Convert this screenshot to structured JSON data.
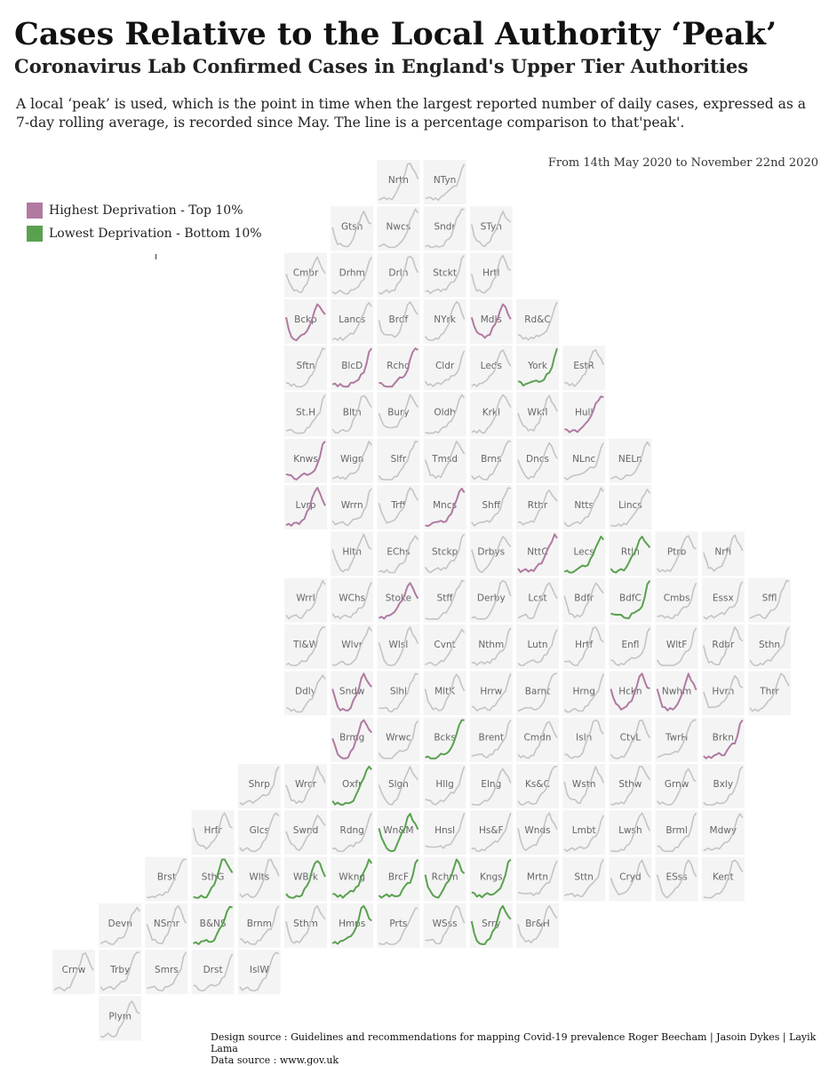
{
  "header": {
    "title": "Cases Relative to the Local Authority ‘Peak’",
    "subtitle": "Coronavirus Lab Confirmed Cases in England's Upper Tier Authorities",
    "description": "A local ‘peak’ is used, which is the point in time when the largest reported number of daily cases, expressed as a 7-day rolling average, is recorded since May. The line is a percentage comparison to that'peak'.",
    "date_range": "From 14th May 2020 to November 22nd 2020"
  },
  "legend": {
    "items": [
      {
        "label": "Highest Deprivation - Top 10%",
        "color": "#b07aa1"
      },
      {
        "label": "Lowest Deprivation - Bottom 10%",
        "color": "#59a14f"
      }
    ],
    "stray_mark": "ı"
  },
  "footer": {
    "design_source": "Design source : Guidelines and recommendations for mapping Covid-19 prevalence Roger Beecham | Jasoin Dykes | Layik Lama",
    "data_source": "Data source : www.gov.uk"
  },
  "chart_data": {
    "type": "small-multiples line (tile grid map)",
    "x_range": [
      "14th May 2020",
      "November 22nd 2020"
    ],
    "y_unit": "% of local peak",
    "ylim": [
      0,
      100
    ],
    "colors": {
      "high": "#b07aa1",
      "low": "#59a14f",
      "other": "#c4c4c4",
      "tile": "#f4f4f4"
    },
    "tiles": [
      {
        "label": "Nrth",
        "row": 0,
        "col": 8,
        "group": "other"
      },
      {
        "label": "NTyn",
        "row": 0,
        "col": 9,
        "group": "other"
      },
      {
        "label": "Gtsh",
        "row": 1,
        "col": 7,
        "group": "other"
      },
      {
        "label": "Nwcs",
        "row": 1,
        "col": 8,
        "group": "other"
      },
      {
        "label": "Sndr",
        "row": 1,
        "col": 9,
        "group": "other"
      },
      {
        "label": "STyn",
        "row": 1,
        "col": 10,
        "group": "other"
      },
      {
        "label": "Cmbr",
        "row": 2,
        "col": 6,
        "group": "other"
      },
      {
        "label": "Drhm",
        "row": 2,
        "col": 7,
        "group": "other"
      },
      {
        "label": "Drln",
        "row": 2,
        "col": 8,
        "group": "other"
      },
      {
        "label": "Stckt",
        "row": 2,
        "col": 9,
        "group": "other"
      },
      {
        "label": "Hrtl",
        "row": 2,
        "col": 10,
        "group": "other"
      },
      {
        "label": "Bckp",
        "row": 3,
        "col": 6,
        "group": "high"
      },
      {
        "label": "Lancs",
        "row": 3,
        "col": 7,
        "group": "other"
      },
      {
        "label": "Brdf",
        "row": 3,
        "col": 8,
        "group": "other"
      },
      {
        "label": "NYrk",
        "row": 3,
        "col": 9,
        "group": "other"
      },
      {
        "label": "Mdls",
        "row": 3,
        "col": 10,
        "group": "high"
      },
      {
        "label": "Rd&C",
        "row": 3,
        "col": 11,
        "group": "other"
      },
      {
        "label": "Sftn",
        "row": 4,
        "col": 6,
        "group": "other"
      },
      {
        "label": "BlcD",
        "row": 4,
        "col": 7,
        "group": "high"
      },
      {
        "label": "Rchd",
        "row": 4,
        "col": 8,
        "group": "high"
      },
      {
        "label": "Cldr",
        "row": 4,
        "col": 9,
        "group": "other"
      },
      {
        "label": "Leds",
        "row": 4,
        "col": 10,
        "group": "other"
      },
      {
        "label": "York",
        "row": 4,
        "col": 11,
        "group": "low"
      },
      {
        "label": "EstR",
        "row": 4,
        "col": 12,
        "group": "other"
      },
      {
        "label": "St.H",
        "row": 5,
        "col": 6,
        "group": "other"
      },
      {
        "label": "Bltn",
        "row": 5,
        "col": 7,
        "group": "other"
      },
      {
        "label": "Bury",
        "row": 5,
        "col": 8,
        "group": "other"
      },
      {
        "label": "Oldh",
        "row": 5,
        "col": 9,
        "group": "other"
      },
      {
        "label": "Krkl",
        "row": 5,
        "col": 10,
        "group": "other"
      },
      {
        "label": "Wkfl",
        "row": 5,
        "col": 11,
        "group": "other"
      },
      {
        "label": "Hull",
        "row": 5,
        "col": 12,
        "group": "high"
      },
      {
        "label": "Knws",
        "row": 6,
        "col": 6,
        "group": "high"
      },
      {
        "label": "Wign",
        "row": 6,
        "col": 7,
        "group": "other"
      },
      {
        "label": "Slfr",
        "row": 6,
        "col": 8,
        "group": "other"
      },
      {
        "label": "Tmsd",
        "row": 6,
        "col": 9,
        "group": "other"
      },
      {
        "label": "Brns",
        "row": 6,
        "col": 10,
        "group": "other"
      },
      {
        "label": "Dncs",
        "row": 6,
        "col": 11,
        "group": "other"
      },
      {
        "label": "NLnc",
        "row": 6,
        "col": 12,
        "group": "other"
      },
      {
        "label": "NELn",
        "row": 6,
        "col": 13,
        "group": "other"
      },
      {
        "label": "Lvrp",
        "row": 7,
        "col": 6,
        "group": "high"
      },
      {
        "label": "Wrrn",
        "row": 7,
        "col": 7,
        "group": "other"
      },
      {
        "label": "Trff",
        "row": 7,
        "col": 8,
        "group": "other"
      },
      {
        "label": "Mncs",
        "row": 7,
        "col": 9,
        "group": "high"
      },
      {
        "label": "Shff",
        "row": 7,
        "col": 10,
        "group": "other"
      },
      {
        "label": "Rthr",
        "row": 7,
        "col": 11,
        "group": "other"
      },
      {
        "label": "Ntts",
        "row": 7,
        "col": 12,
        "group": "other"
      },
      {
        "label": "Lincs",
        "row": 7,
        "col": 13,
        "group": "other"
      },
      {
        "label": "Hltn",
        "row": 8,
        "col": 7,
        "group": "other"
      },
      {
        "label": "EChs",
        "row": 8,
        "col": 8,
        "group": "other"
      },
      {
        "label": "Stckp",
        "row": 8,
        "col": 9,
        "group": "other"
      },
      {
        "label": "Drbys",
        "row": 8,
        "col": 10,
        "group": "other"
      },
      {
        "label": "NttC",
        "row": 8,
        "col": 11,
        "group": "high"
      },
      {
        "label": "Lecs",
        "row": 8,
        "col": 12,
        "group": "low"
      },
      {
        "label": "Rtln",
        "row": 8,
        "col": 13,
        "group": "low"
      },
      {
        "label": "Ptrb",
        "row": 8,
        "col": 14,
        "group": "other"
      },
      {
        "label": "Nrfl",
        "row": 8,
        "col": 15,
        "group": "other"
      },
      {
        "label": "Wrrl",
        "row": 9,
        "col": 6,
        "group": "other"
      },
      {
        "label": "WChs",
        "row": 9,
        "col": 7,
        "group": "other"
      },
      {
        "label": "Stoke",
        "row": 9,
        "col": 8,
        "group": "high"
      },
      {
        "label": "Stff",
        "row": 9,
        "col": 9,
        "group": "other"
      },
      {
        "label": "Derby",
        "row": 9,
        "col": 10,
        "group": "other"
      },
      {
        "label": "Lcst",
        "row": 9,
        "col": 11,
        "group": "other"
      },
      {
        "label": "Bdfr",
        "row": 9,
        "col": 12,
        "group": "other"
      },
      {
        "label": "BdfC",
        "row": 9,
        "col": 13,
        "group": "low"
      },
      {
        "label": "Cmbs",
        "row": 9,
        "col": 14,
        "group": "other"
      },
      {
        "label": "Essx",
        "row": 9,
        "col": 15,
        "group": "other"
      },
      {
        "label": "Sffl",
        "row": 9,
        "col": 16,
        "group": "other"
      },
      {
        "label": "Tl&W",
        "row": 10,
        "col": 6,
        "group": "other"
      },
      {
        "label": "Wlvr",
        "row": 10,
        "col": 7,
        "group": "other"
      },
      {
        "label": "Wlsl",
        "row": 10,
        "col": 8,
        "group": "other"
      },
      {
        "label": "Cvnt",
        "row": 10,
        "col": 9,
        "group": "other"
      },
      {
        "label": "Nthm",
        "row": 10,
        "col": 10,
        "group": "other"
      },
      {
        "label": "Lutn",
        "row": 10,
        "col": 11,
        "group": "other"
      },
      {
        "label": "Hrtf",
        "row": 10,
        "col": 12,
        "group": "other"
      },
      {
        "label": "Enfl",
        "row": 10,
        "col": 13,
        "group": "other"
      },
      {
        "label": "WltF",
        "row": 10,
        "col": 14,
        "group": "other"
      },
      {
        "label": "Rdbr",
        "row": 10,
        "col": 15,
        "group": "other"
      },
      {
        "label": "Sthn",
        "row": 10,
        "col": 16,
        "group": "other"
      },
      {
        "label": "Ddly",
        "row": 11,
        "col": 6,
        "group": "other"
      },
      {
        "label": "Sndw",
        "row": 11,
        "col": 7,
        "group": "high"
      },
      {
        "label": "Slhl",
        "row": 11,
        "col": 8,
        "group": "other"
      },
      {
        "label": "MltK",
        "row": 11,
        "col": 9,
        "group": "other"
      },
      {
        "label": "Hrrw",
        "row": 11,
        "col": 10,
        "group": "other"
      },
      {
        "label": "Barnt",
        "row": 11,
        "col": 11,
        "group": "other"
      },
      {
        "label": "Hrng",
        "row": 11,
        "col": 12,
        "group": "other"
      },
      {
        "label": "Hckn",
        "row": 11,
        "col": 13,
        "group": "high"
      },
      {
        "label": "Nwhm",
        "row": 11,
        "col": 14,
        "group": "high"
      },
      {
        "label": "Hvrn",
        "row": 11,
        "col": 15,
        "group": "other"
      },
      {
        "label": "Thrr",
        "row": 11,
        "col": 16,
        "group": "other"
      },
      {
        "label": "Brmg",
        "row": 12,
        "col": 7,
        "group": "high"
      },
      {
        "label": "Wrwc",
        "row": 12,
        "col": 8,
        "group": "other"
      },
      {
        "label": "Bcks",
        "row": 12,
        "col": 9,
        "group": "low"
      },
      {
        "label": "Brent",
        "row": 12,
        "col": 10,
        "group": "other"
      },
      {
        "label": "Cmdn",
        "row": 12,
        "col": 11,
        "group": "other"
      },
      {
        "label": "Isln",
        "row": 12,
        "col": 12,
        "group": "other"
      },
      {
        "label": "CtyL",
        "row": 12,
        "col": 13,
        "group": "other"
      },
      {
        "label": "TwrH",
        "row": 12,
        "col": 14,
        "group": "other"
      },
      {
        "label": "Brkn",
        "row": 12,
        "col": 15,
        "group": "high"
      },
      {
        "label": "Shrp",
        "row": 13,
        "col": 5,
        "group": "other"
      },
      {
        "label": "Wrcr",
        "row": 13,
        "col": 6,
        "group": "other"
      },
      {
        "label": "Oxfr",
        "row": 13,
        "col": 7,
        "group": "low"
      },
      {
        "label": "Slgh",
        "row": 13,
        "col": 8,
        "group": "other"
      },
      {
        "label": "Hllg",
        "row": 13,
        "col": 9,
        "group": "other"
      },
      {
        "label": "Elng",
        "row": 13,
        "col": 10,
        "group": "other"
      },
      {
        "label": "Ks&C",
        "row": 13,
        "col": 11,
        "group": "other"
      },
      {
        "label": "Wstn",
        "row": 13,
        "col": 12,
        "group": "other"
      },
      {
        "label": "Sthw",
        "row": 13,
        "col": 13,
        "group": "other"
      },
      {
        "label": "Grnw",
        "row": 13,
        "col": 14,
        "group": "other"
      },
      {
        "label": "Bxly",
        "row": 13,
        "col": 15,
        "group": "other"
      },
      {
        "label": "Hrfr",
        "row": 14,
        "col": 4,
        "group": "other"
      },
      {
        "label": "Glcs",
        "row": 14,
        "col": 5,
        "group": "other"
      },
      {
        "label": "Swnd",
        "row": 14,
        "col": 6,
        "group": "other"
      },
      {
        "label": "Rdng",
        "row": 14,
        "col": 7,
        "group": "other"
      },
      {
        "label": "Wn&M",
        "row": 14,
        "col": 8,
        "group": "low"
      },
      {
        "label": "Hnsl",
        "row": 14,
        "col": 9,
        "group": "other"
      },
      {
        "label": "Hs&F",
        "row": 14,
        "col": 10,
        "group": "other"
      },
      {
        "label": "Wnds",
        "row": 14,
        "col": 11,
        "group": "other"
      },
      {
        "label": "Lmbt",
        "row": 14,
        "col": 12,
        "group": "other"
      },
      {
        "label": "Lwsh",
        "row": 14,
        "col": 13,
        "group": "other"
      },
      {
        "label": "Brml",
        "row": 14,
        "col": 14,
        "group": "other"
      },
      {
        "label": "Mdwy",
        "row": 14,
        "col": 15,
        "group": "other"
      },
      {
        "label": "Brst",
        "row": 15,
        "col": 3,
        "group": "other"
      },
      {
        "label": "SthG",
        "row": 15,
        "col": 4,
        "group": "low"
      },
      {
        "label": "Wlts",
        "row": 15,
        "col": 5,
        "group": "other"
      },
      {
        "label": "WBrk",
        "row": 15,
        "col": 6,
        "group": "low"
      },
      {
        "label": "Wkng",
        "row": 15,
        "col": 7,
        "group": "low"
      },
      {
        "label": "BrcF",
        "row": 15,
        "col": 8,
        "group": "low"
      },
      {
        "label": "Rchm",
        "row": 15,
        "col": 9,
        "group": "low"
      },
      {
        "label": "Kngs",
        "row": 15,
        "col": 10,
        "group": "low"
      },
      {
        "label": "Mrtn",
        "row": 15,
        "col": 11,
        "group": "other"
      },
      {
        "label": "Sttn",
        "row": 15,
        "col": 12,
        "group": "other"
      },
      {
        "label": "Cryd",
        "row": 15,
        "col": 13,
        "group": "other"
      },
      {
        "label": "ESss",
        "row": 15,
        "col": 14,
        "group": "other"
      },
      {
        "label": "Kent",
        "row": 15,
        "col": 15,
        "group": "other"
      },
      {
        "label": "Devn",
        "row": 16,
        "col": 2,
        "group": "other"
      },
      {
        "label": "NSmr",
        "row": 16,
        "col": 3,
        "group": "other"
      },
      {
        "label": "B&NS",
        "row": 16,
        "col": 4,
        "group": "low"
      },
      {
        "label": "Brnm",
        "row": 16,
        "col": 5,
        "group": "other"
      },
      {
        "label": "Sthm",
        "row": 16,
        "col": 6,
        "group": "other"
      },
      {
        "label": "Hmps",
        "row": 16,
        "col": 7,
        "group": "low"
      },
      {
        "label": "Prts",
        "row": 16,
        "col": 8,
        "group": "other"
      },
      {
        "label": "WSss",
        "row": 16,
        "col": 9,
        "group": "other"
      },
      {
        "label": "Srry",
        "row": 16,
        "col": 10,
        "group": "low"
      },
      {
        "label": "Br&H",
        "row": 16,
        "col": 11,
        "group": "other"
      },
      {
        "label": "Crnw",
        "row": 17,
        "col": 1,
        "group": "other"
      },
      {
        "label": "Trby",
        "row": 17,
        "col": 2,
        "group": "other"
      },
      {
        "label": "Smrs",
        "row": 17,
        "col": 3,
        "group": "other"
      },
      {
        "label": "Drst",
        "row": 17,
        "col": 4,
        "group": "other"
      },
      {
        "label": "IslW",
        "row": 17,
        "col": 5,
        "group": "other"
      },
      {
        "label": "Plym",
        "row": 18,
        "col": 2,
        "group": "other"
      }
    ],
    "profiles": {
      "wave2_early": [
        0.1,
        0.06,
        0.05,
        0.06,
        0.05,
        0.07,
        0.12,
        0.22,
        0.35,
        0.5,
        0.7,
        0.92,
        1.0,
        0.88,
        0.72,
        0.6
      ],
      "wave2_late": [
        0.08,
        0.05,
        0.04,
        0.05,
        0.04,
        0.05,
        0.08,
        0.12,
        0.18,
        0.25,
        0.35,
        0.5,
        0.7,
        0.85,
        1.0,
        0.92
      ],
      "spring_peak": [
        0.55,
        0.3,
        0.15,
        0.1,
        0.08,
        0.08,
        0.1,
        0.18,
        0.3,
        0.45,
        0.62,
        0.85,
        1.0,
        0.85,
        0.7,
        0.6
      ],
      "spike_end": [
        0.08,
        0.06,
        0.05,
        0.05,
        0.05,
        0.06,
        0.08,
        0.1,
        0.14,
        0.2,
        0.26,
        0.32,
        0.4,
        0.55,
        0.85,
        1.0
      ]
    }
  }
}
